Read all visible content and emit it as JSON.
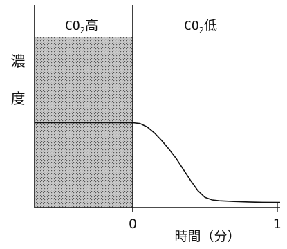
{
  "chart_data": {
    "type": "line",
    "ylabel": "濃度",
    "xlabel": "時間（分）",
    "x_ticks": [
      {
        "value": 0,
        "label": "0"
      },
      {
        "value": 1,
        "label": "1"
      }
    ],
    "xlim": [
      -0.68,
      1.02
    ],
    "ylim": [
      0,
      1
    ],
    "regions": [
      {
        "name": "high",
        "prefix": "CO",
        "subscript": "2",
        "suffix": "高",
        "x_range": [
          -0.68,
          0
        ],
        "shaded": true
      },
      {
        "name": "low",
        "prefix": "CO",
        "subscript": "2",
        "suffix": "低",
        "x_range": [
          0,
          1.02
        ],
        "shaded": false
      }
    ],
    "series": [
      {
        "x": [
          -0.68,
          0,
          0.05,
          0.1,
          0.15,
          0.2,
          0.25,
          0.3,
          0.35,
          0.4,
          0.45,
          0.5,
          0.55,
          0.6,
          0.65,
          0.7,
          0.8,
          0.9,
          1.02
        ],
        "y": [
          0.5,
          0.5,
          0.495,
          0.475,
          0.44,
          0.395,
          0.345,
          0.29,
          0.225,
          0.16,
          0.1,
          0.06,
          0.045,
          0.04,
          0.038,
          0.036,
          0.033,
          0.031,
          0.03
        ]
      }
    ]
  }
}
